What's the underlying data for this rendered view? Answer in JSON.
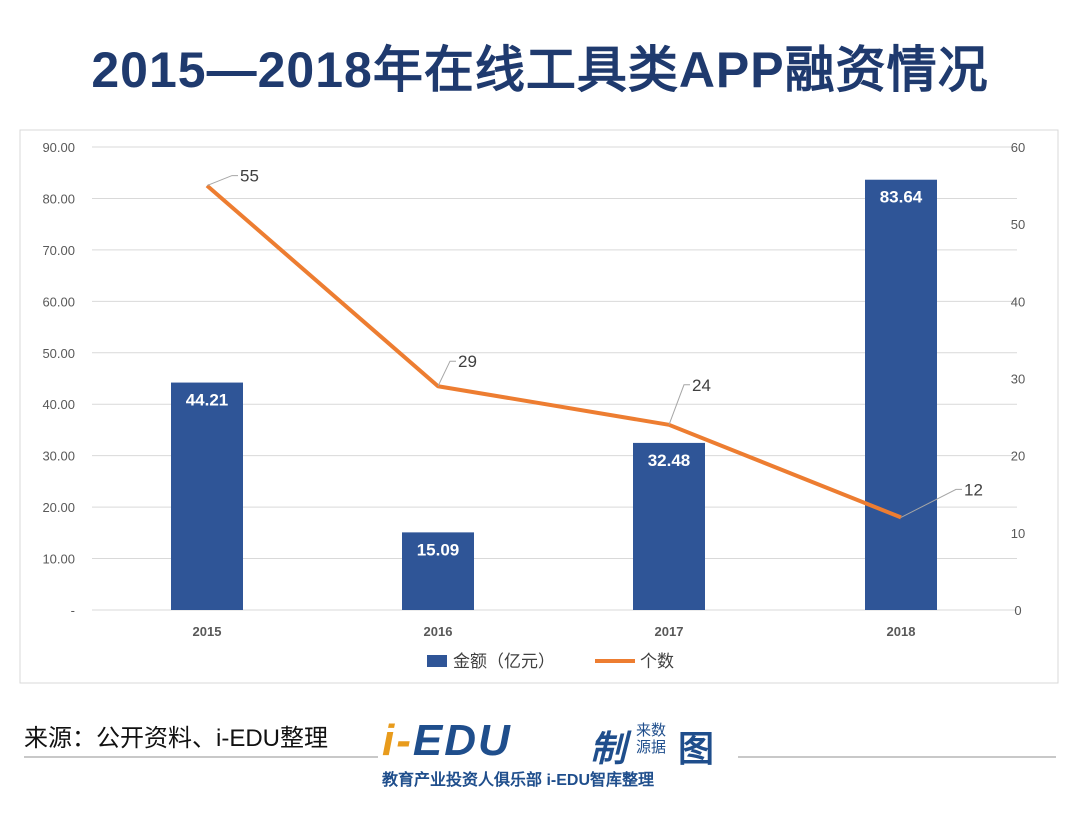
{
  "title": "2015—2018年在线工具类APP融资情况",
  "source": "来源：公开资料、i-EDU整理",
  "logo": {
    "main": "i-EDU",
    "zhi": "制",
    "laiyuan": "来数源据",
    "tu": "图",
    "sub": "教育产业投资人俱乐部  i-EDU智库整理"
  },
  "chart_data": {
    "type": "bar+line",
    "categories": [
      "2015",
      "2016",
      "2017",
      "2018"
    ],
    "series": [
      {
        "name": "金额（亿元）",
        "type": "bar",
        "axis": "left",
        "values": [
          44.21,
          15.09,
          32.48,
          83.64
        ],
        "color": "#2f5597"
      },
      {
        "name": "个数",
        "type": "line",
        "axis": "right",
        "values": [
          55,
          29,
          24,
          12
        ],
        "color": "#ed7d31"
      }
    ],
    "left_axis": {
      "ylim": [
        0,
        90
      ],
      "ticks": [
        "-",
        "10.00",
        "20.00",
        "30.00",
        "40.00",
        "50.00",
        "60.00",
        "70.00",
        "80.00",
        "90.00"
      ]
    },
    "right_axis": {
      "ylim": [
        0,
        60
      ],
      "ticks": [
        "0",
        "10",
        "20",
        "30",
        "40",
        "50",
        "60"
      ]
    },
    "grid": true,
    "legend": "bottom"
  }
}
